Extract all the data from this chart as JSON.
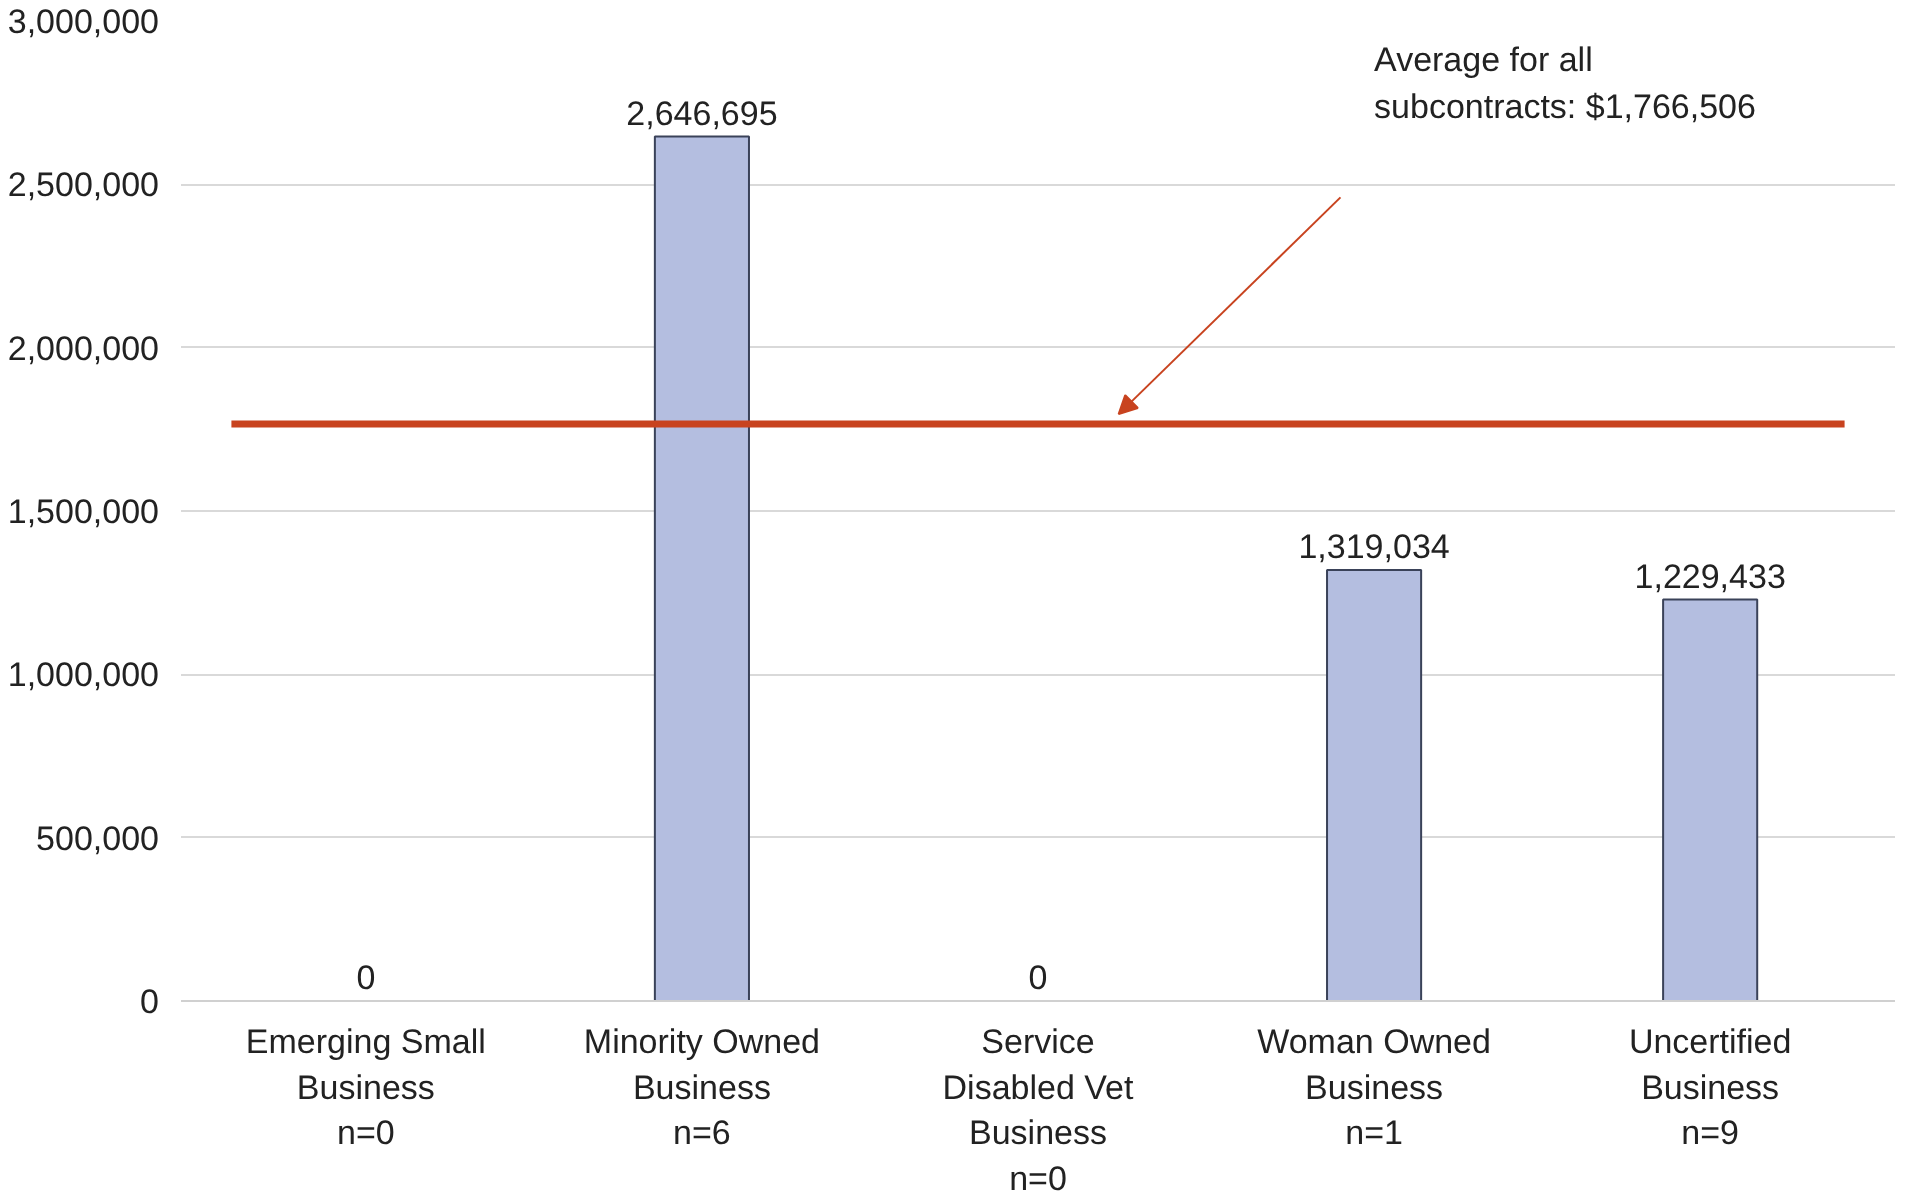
{
  "chart_data": {
    "type": "bar",
    "categories": [
      "Emerging Small\nBusiness\nn=0",
      "Minority Owned\nBusiness\nn=6",
      "Service\nDisabled Vet\nBusiness\nn=0",
      "Woman Owned\nBusiness\nn=1",
      "Uncertified\nBusiness\nn=9"
    ],
    "values": [
      0,
      2646695,
      0,
      1319034,
      1229433
    ],
    "color": "#b4bee0",
    "value_labels": [
      "0",
      "2,646,695",
      "0",
      "1,319,034",
      "1,229,433"
    ],
    "annotations": [
      "Average for all\nsubcontracts: $1,766,506"
    ],
    "ylim": [
      0,
      3000000
    ],
    "yticks": [
      {
        "value": 0,
        "label": "0"
      },
      {
        "value": 500000,
        "label": "500,000"
      },
      {
        "value": 1000000,
        "label": "1,000,000"
      },
      {
        "value": 1500000,
        "label": "1,500,000"
      },
      {
        "value": 2000000,
        "label": "2,000,000"
      },
      {
        "value": 2500000,
        "label": "2,500,000"
      },
      {
        "value": 3000000,
        "label": "3,000,000"
      }
    ],
    "grid": "y",
    "ref_lines": [
      {
        "axis": "y",
        "value": 1766506,
        "color": "#c8431f"
      }
    ]
  }
}
